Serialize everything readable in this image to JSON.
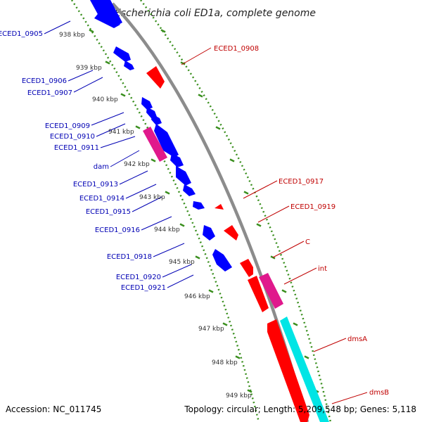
{
  "title": "Escherichia coli ED1a, complete genome",
  "footer": {
    "accession": "Accession: NC_011745",
    "summary": "Topology: circular; Length: 5,209,548 bp; Genes: 5,118"
  },
  "colors": {
    "forward_gene": "#0000ff",
    "reverse_gene": "#ff0000",
    "pink_feature": "#e0198c",
    "cyan_feature": "#00e5e5",
    "backbone": "#8c8c8c",
    "tick": "#3a8f1e",
    "left_label": "#0000b4",
    "right_label": "#c00000",
    "kbp_label": "#333333"
  },
  "kbp_ticks": [
    "938 kbp",
    "939 kbp",
    "940 kbp",
    "941 kbp",
    "942 kbp",
    "943 kbp",
    "944 kbp",
    "945 kbp",
    "946 kbp",
    "947 kbp",
    "948 kbp",
    "949 kbp"
  ],
  "left_labels": [
    "ECED1_0905",
    "ECED1_0906",
    "ECED1_0907",
    "ECED1_0909",
    "ECED1_0910",
    "ECED1_0911",
    "dam",
    "ECED1_0913",
    "ECED1_0914",
    "ECED1_0915",
    "ECED1_0916",
    "ECED1_0918",
    "ECED1_0920",
    "ECED1_0921"
  ],
  "right_labels": [
    "ECED1_0908",
    "ECED1_0917",
    "ECED1_0919",
    "C",
    "int",
    "dmsA",
    "dmsB"
  ]
}
